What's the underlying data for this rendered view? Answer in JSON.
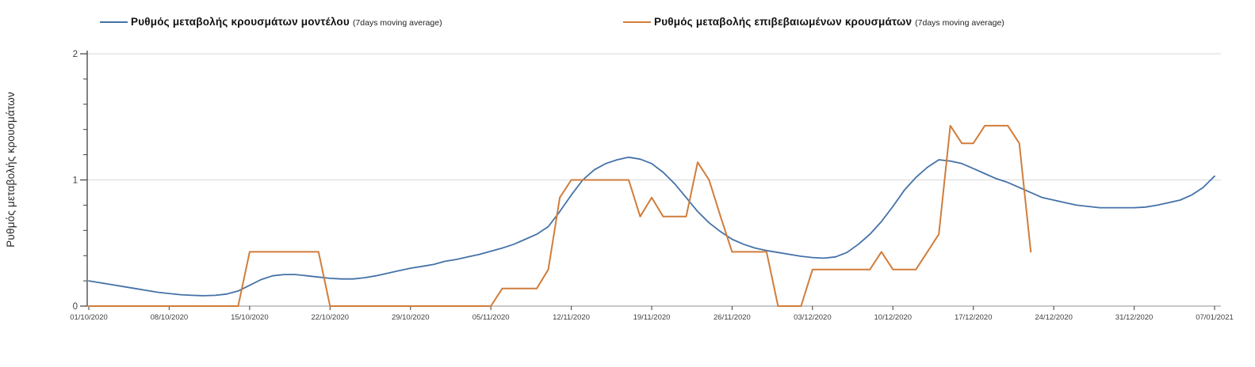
{
  "colors": {
    "model_line": "#4472a8",
    "confirmed_line": "#d07d3b",
    "gridline": "#d9d9d9",
    "y_axis": "#404040",
    "x_axis": "#a6a6a6",
    "x_axis_tick": "#595959",
    "tick_text": "#3f3f3f",
    "legend_text": "#111111"
  },
  "legend": {
    "entries": [
      {
        "label": "Ρυθμός μεταβολής κρουσμάτων μοντέλου",
        "suffix": "(7days moving average)"
      },
      {
        "label": "Ρυθμός μεταβολής επιβεβαιωμένων κρουσμάτων",
        "suffix": "(7days moving average)"
      }
    ]
  },
  "y_axis": {
    "title": "Ρυθμός μεταβολής κρουσμάτων",
    "tick_labels": [
      "0",
      "1",
      "2"
    ],
    "tick_values": [
      0,
      1,
      2
    ],
    "minor_tick_step": 0.2
  },
  "chart_data": {
    "type": "line",
    "title": "",
    "xlabel": "",
    "ylabel": "Ρυθμός μεταβολής κρουσμάτων",
    "ylim": [
      0,
      2
    ],
    "grid": "horizontal gridlines at y=1 and y=2",
    "legend_position": "top",
    "x_unit": "daily values, day 0 = 01/10/2020, x ticks every 7 days",
    "x_tick_labels": [
      "01/10/2020",
      "08/10/2020",
      "15/10/2020",
      "22/10/2020",
      "29/10/2020",
      "05/11/2020",
      "12/11/2020",
      "19/11/2020",
      "26/11/2020",
      "03/12/2020",
      "10/12/2020",
      "17/12/2020",
      "24/12/2020",
      "31/12/2020",
      "07/01/2021"
    ],
    "series": [
      {
        "name": "Ρυθμός μεταβολής κρουσμάτων μοντέλου (7days moving average)",
        "color": "#4472a8",
        "start_day": 0,
        "step_days": 1,
        "values": [
          0.2,
          0.185,
          0.17,
          0.155,
          0.14,
          0.125,
          0.11,
          0.1,
          0.09,
          0.085,
          0.082,
          0.085,
          0.095,
          0.12,
          0.165,
          0.21,
          0.24,
          0.25,
          0.25,
          0.24,
          0.23,
          0.22,
          0.215,
          0.215,
          0.225,
          0.24,
          0.26,
          0.28,
          0.3,
          0.315,
          0.33,
          0.355,
          0.37,
          0.39,
          0.41,
          0.435,
          0.46,
          0.49,
          0.53,
          0.57,
          0.63,
          0.75,
          0.88,
          1.0,
          1.08,
          1.13,
          1.16,
          1.18,
          1.165,
          1.13,
          1.06,
          0.97,
          0.86,
          0.75,
          0.66,
          0.59,
          0.53,
          0.49,
          0.46,
          0.44,
          0.425,
          0.41,
          0.395,
          0.385,
          0.38,
          0.39,
          0.425,
          0.49,
          0.57,
          0.67,
          0.79,
          0.92,
          1.02,
          1.1,
          1.16,
          1.15,
          1.13,
          1.09,
          1.05,
          1.01,
          0.98,
          0.94,
          0.9,
          0.86,
          0.84,
          0.82,
          0.8,
          0.79,
          0.78,
          0.78,
          0.78,
          0.78,
          0.785,
          0.8,
          0.82,
          0.84,
          0.88,
          0.94,
          1.03
        ]
      },
      {
        "name": "Ρυθμός μεταβολής επιβεβαιωμένων κρουσμάτων (7days moving average)",
        "color": "#d07d3b",
        "start_day": 0,
        "step_days": 1,
        "values": [
          0,
          0,
          0,
          0,
          0,
          0,
          0,
          0,
          0,
          0,
          0,
          0,
          0,
          0,
          0.43,
          0.43,
          0.43,
          0.43,
          0.43,
          0.43,
          0.43,
          0,
          0,
          0,
          0,
          0,
          0,
          0,
          0,
          0,
          0,
          0,
          0,
          0,
          0,
          0,
          0.14,
          0.14,
          0.14,
          0.14,
          0.29,
          0.86,
          1,
          1,
          1,
          1,
          1,
          1,
          0.71,
          0.86,
          0.71,
          0.71,
          0.71,
          1.14,
          1,
          0.71,
          0.43,
          0.43,
          0.43,
          0.43,
          0,
          0,
          0,
          0.29,
          0.29,
          0.29,
          0.29,
          0.29,
          0.29,
          0.43,
          0.29,
          0.29,
          0.29,
          0.43,
          0.57,
          1.43,
          1.29,
          1.29,
          1.43,
          1.43,
          1.43,
          1.29,
          0.43
        ]
      }
    ]
  }
}
